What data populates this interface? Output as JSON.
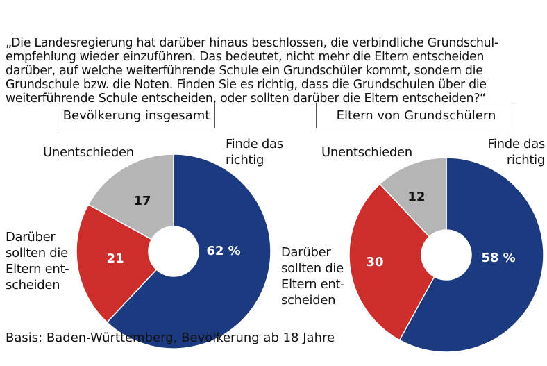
{
  "question": [
    "„Die Landesregierung hat darüber hinaus beschlossen, die verbindliche Grundschul-",
    "empfehlung wieder einzuführen. Das bedeutet, nicht mehr die Eltern entscheiden",
    "darüber, auf welche weiterführende Schule ein Grundschüler kommt, sondern die",
    "Grundschule bzw. die Noten. Finden Sie es richtig, dass die Grundschulen über die",
    "weiterführende Schule entscheiden, oder sollten darüber die Eltern entscheiden?“"
  ],
  "chart_data": [
    {
      "type": "pie",
      "title": "Bevölkerung insgesamt",
      "categories": [
        "Finde das\nrichtig",
        "Darüber\nsollten die\nEltern ent-\nscheiden",
        "Unentschieden"
      ],
      "values": [
        62,
        21,
        17
      ],
      "value_labels": [
        "62 %",
        "21",
        "17"
      ],
      "colors": [
        "#1c3a80",
        "#cc2f2b",
        "#b5b5b5"
      ]
    },
    {
      "type": "pie",
      "title": "Eltern von Grundschülern",
      "categories": [
        "Finde das\nrichtig",
        "Darüber\nsollten die\nEltern ent-\nscheiden",
        "Unentschieden"
      ],
      "values": [
        58,
        30,
        12
      ],
      "value_labels": [
        "58 %",
        "30",
        "12"
      ],
      "colors": [
        "#1c3a80",
        "#cc2f2b",
        "#b5b5b5"
      ]
    }
  ],
  "footnote": "Basis: Baden-Württemberg, Bevölkerung ab 18 Jahre"
}
